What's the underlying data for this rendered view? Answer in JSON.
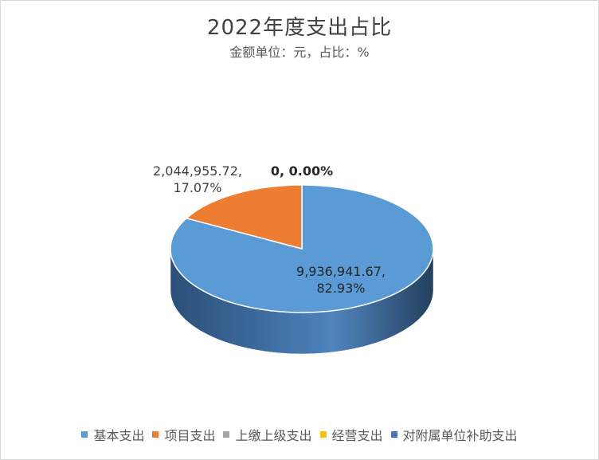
{
  "chart_data": {
    "type": "pie",
    "title": "2022年度支出占比",
    "subtitle": "金额单位：元，占比：%",
    "categories": [
      "基本支出",
      "项目支出",
      "上缴上级支出",
      "经营支出",
      "对附属单位补助支出"
    ],
    "values": [
      9936941.67,
      2044955.72,
      0,
      0,
      0
    ],
    "percentages": [
      82.93,
      17.07,
      0.0,
      0.0,
      0.0
    ],
    "colors": [
      "#5b9bd5",
      "#ed7d31",
      "#a5a5a5",
      "#ffc000",
      "#4472c4"
    ],
    "data_labels": [
      {
        "value": "9,936,941.67,",
        "percent": "82.93%"
      },
      {
        "value": "2,044,955.72,",
        "percent": "17.07%"
      },
      {
        "value": "0, 0.00%"
      }
    ],
    "legend_position": "bottom",
    "style": "3d-pie"
  }
}
